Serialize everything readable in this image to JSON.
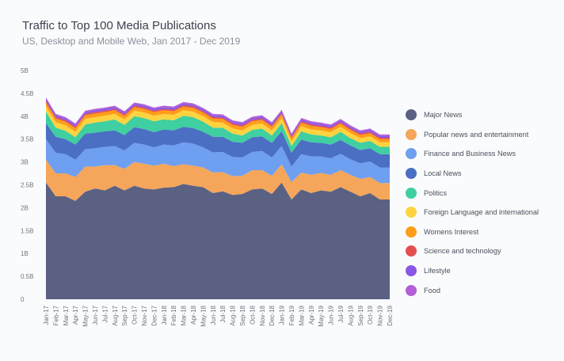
{
  "chart_data": {
    "type": "area",
    "stacked": true,
    "title": "Traffic to Top 100 Media Publications",
    "subtitle": "US, Desktop and Mobile Web, Jan 2017 - Dec 2019",
    "xlabel": "",
    "ylabel": "",
    "ylim": [
      0,
      5
    ],
    "yticks": [
      {
        "value": 0,
        "label": "0"
      },
      {
        "value": 0.5,
        "label": "0.5B"
      },
      {
        "value": 1,
        "label": "1B"
      },
      {
        "value": 1.5,
        "label": "1.5B"
      },
      {
        "value": 2,
        "label": "2B"
      },
      {
        "value": 2.5,
        "label": "2.5B"
      },
      {
        "value": 3,
        "label": "3B"
      },
      {
        "value": 3.5,
        "label": "3.5B"
      },
      {
        "value": 4,
        "label": "4B"
      },
      {
        "value": 4.5,
        "label": "4.5B"
      },
      {
        "value": 5,
        "label": "5B"
      }
    ],
    "grid": false,
    "legend_position": "right",
    "categories": [
      "Jan-17",
      "Feb-17",
      "Mar-17",
      "Apr-17",
      "May-17",
      "Jun-17",
      "Jul-17",
      "Aug-17",
      "Sep-17",
      "Oct-17",
      "Nov-17",
      "Dec-17",
      "Jan-18",
      "Feb-18",
      "Mar-18",
      "Apr-18",
      "May-18",
      "Jun-18",
      "Jul-18",
      "Aug-18",
      "Sep-18",
      "Oct-18",
      "Nov-18",
      "Dec-18",
      "Jan-19",
      "Feb-19",
      "Mar-19",
      "Apr-19",
      "May-19",
      "Jun-19",
      "Jul-19",
      "Aug-19",
      "Sep-19",
      "Oct-19",
      "Nov-19",
      "Dec-19"
    ],
    "series": [
      {
        "name": "Major News",
        "color": "#5a6183",
        "values": [
          2.55,
          2.25,
          2.25,
          2.15,
          2.35,
          2.42,
          2.38,
          2.48,
          2.38,
          2.48,
          2.42,
          2.4,
          2.44,
          2.45,
          2.52,
          2.48,
          2.45,
          2.32,
          2.36,
          2.28,
          2.3,
          2.4,
          2.42,
          2.3,
          2.55,
          2.18,
          2.4,
          2.32,
          2.38,
          2.35,
          2.45,
          2.35,
          2.25,
          2.32,
          2.18,
          2.18
        ]
      },
      {
        "name": "Popular news and entertainment",
        "color": "#f5a65b",
        "values": [
          0.5,
          0.5,
          0.5,
          0.52,
          0.55,
          0.48,
          0.55,
          0.45,
          0.47,
          0.52,
          0.54,
          0.52,
          0.52,
          0.46,
          0.43,
          0.44,
          0.43,
          0.45,
          0.42,
          0.41,
          0.4,
          0.42,
          0.4,
          0.4,
          0.4,
          0.38,
          0.37,
          0.4,
          0.38,
          0.37,
          0.37,
          0.37,
          0.38,
          0.35,
          0.36,
          0.36
        ]
      },
      {
        "name": "Finance and Business News",
        "color": "#6f9ff0",
        "values": [
          0.45,
          0.45,
          0.42,
          0.38,
          0.38,
          0.4,
          0.4,
          0.42,
          0.4,
          0.42,
          0.42,
          0.4,
          0.42,
          0.45,
          0.48,
          0.48,
          0.44,
          0.44,
          0.44,
          0.42,
          0.4,
          0.4,
          0.42,
          0.4,
          0.4,
          0.34,
          0.4,
          0.4,
          0.36,
          0.36,
          0.36,
          0.34,
          0.34,
          0.34,
          0.34,
          0.34
        ]
      },
      {
        "name": "Local News",
        "color": "#4a6fc3",
        "values": [
          0.35,
          0.35,
          0.33,
          0.33,
          0.34,
          0.34,
          0.34,
          0.34,
          0.34,
          0.34,
          0.34,
          0.33,
          0.33,
          0.33,
          0.34,
          0.34,
          0.34,
          0.34,
          0.33,
          0.33,
          0.32,
          0.32,
          0.32,
          0.32,
          0.32,
          0.3,
          0.32,
          0.31,
          0.3,
          0.3,
          0.3,
          0.3,
          0.29,
          0.29,
          0.29,
          0.29
        ]
      },
      {
        "name": "Politics",
        "color": "#3fcfa0",
        "values": [
          0.25,
          0.2,
          0.18,
          0.16,
          0.2,
          0.22,
          0.22,
          0.24,
          0.22,
          0.24,
          0.24,
          0.24,
          0.22,
          0.22,
          0.24,
          0.24,
          0.22,
          0.2,
          0.2,
          0.18,
          0.16,
          0.16,
          0.17,
          0.16,
          0.18,
          0.15,
          0.18,
          0.17,
          0.16,
          0.16,
          0.18,
          0.16,
          0.16,
          0.16,
          0.16,
          0.16
        ]
      },
      {
        "name": "Foreign Language and international",
        "color": "#ffd33f",
        "values": [
          0.12,
          0.12,
          0.12,
          0.12,
          0.12,
          0.12,
          0.12,
          0.12,
          0.12,
          0.12,
          0.12,
          0.12,
          0.12,
          0.12,
          0.12,
          0.12,
          0.12,
          0.12,
          0.11,
          0.11,
          0.11,
          0.11,
          0.11,
          0.11,
          0.11,
          0.1,
          0.11,
          0.11,
          0.11,
          0.11,
          0.11,
          0.11,
          0.1,
          0.1,
          0.1,
          0.1
        ]
      },
      {
        "name": "Womens Interest",
        "color": "#ff9d1a",
        "values": [
          0.08,
          0.08,
          0.08,
          0.08,
          0.08,
          0.08,
          0.08,
          0.08,
          0.08,
          0.08,
          0.08,
          0.08,
          0.08,
          0.08,
          0.08,
          0.08,
          0.08,
          0.08,
          0.08,
          0.08,
          0.08,
          0.08,
          0.08,
          0.08,
          0.08,
          0.07,
          0.08,
          0.08,
          0.07,
          0.07,
          0.07,
          0.07,
          0.07,
          0.07,
          0.07,
          0.07
        ]
      },
      {
        "name": "Science and technology",
        "color": "#e34f4f",
        "values": [
          0.03,
          0.03,
          0.03,
          0.03,
          0.03,
          0.03,
          0.03,
          0.03,
          0.03,
          0.03,
          0.03,
          0.03,
          0.03,
          0.03,
          0.03,
          0.03,
          0.03,
          0.03,
          0.03,
          0.03,
          0.03,
          0.03,
          0.03,
          0.03,
          0.03,
          0.03,
          0.03,
          0.03,
          0.03,
          0.03,
          0.03,
          0.03,
          0.03,
          0.03,
          0.03,
          0.03
        ]
      },
      {
        "name": "Lifestyle",
        "color": "#8a56e6",
        "values": [
          0.05,
          0.04,
          0.04,
          0.04,
          0.04,
          0.04,
          0.04,
          0.04,
          0.04,
          0.04,
          0.04,
          0.04,
          0.04,
          0.04,
          0.04,
          0.04,
          0.04,
          0.04,
          0.04,
          0.04,
          0.04,
          0.04,
          0.04,
          0.04,
          0.04,
          0.04,
          0.04,
          0.04,
          0.04,
          0.04,
          0.04,
          0.04,
          0.04,
          0.04,
          0.04,
          0.04
        ]
      },
      {
        "name": "Food",
        "color": "#b35fd6",
        "values": [
          0.03,
          0.03,
          0.03,
          0.03,
          0.03,
          0.03,
          0.03,
          0.03,
          0.03,
          0.03,
          0.03,
          0.03,
          0.03,
          0.03,
          0.03,
          0.03,
          0.03,
          0.03,
          0.03,
          0.03,
          0.03,
          0.03,
          0.03,
          0.03,
          0.03,
          0.03,
          0.03,
          0.03,
          0.03,
          0.03,
          0.03,
          0.03,
          0.03,
          0.03,
          0.03,
          0.03
        ]
      }
    ]
  }
}
